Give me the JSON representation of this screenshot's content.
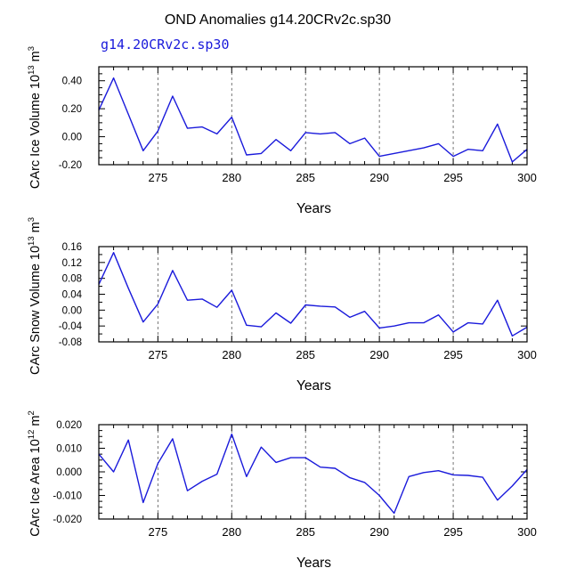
{
  "figure": {
    "title": "OND Anomalies g14.20CRv2c.sp30",
    "run_label": "g14.20CRv2c.sp30",
    "line_color": "#1a1adb",
    "axis_color": "#000000",
    "grid_color": "#555555"
  },
  "chart_data": [
    {
      "type": "line",
      "ylabel_pre": "CArc Ice Volume 10",
      "ylabel_exp": "13",
      "ylabel_mid": " m",
      "ylabel_exp2": "3",
      "xlabel": "Years",
      "xlim": [
        271,
        300
      ],
      "ylim": [
        -0.2,
        0.5
      ],
      "xticks": [
        275,
        280,
        285,
        290,
        295,
        300
      ],
      "xtick_labels": [
        "275",
        "280",
        "285",
        "290",
        "295",
        "300"
      ],
      "yticks": [
        -0.2,
        0.0,
        0.2,
        0.4
      ],
      "ytick_labels": [
        "-0.20",
        "0.00",
        "0.20",
        "0.40"
      ],
      "yminor_step": 0.05,
      "grid": "vertical dashed at major x ticks",
      "series": [
        {
          "x": [
            271,
            272,
            273,
            274,
            275,
            276,
            277,
            278,
            279,
            280,
            281,
            282,
            283,
            284,
            285,
            286,
            287,
            288,
            289,
            290,
            293,
            294,
            295,
            296,
            297,
            298,
            299,
            300
          ],
          "values": [
            0.19,
            0.42,
            0.16,
            -0.1,
            0.04,
            0.29,
            0.06,
            0.07,
            0.02,
            0.14,
            -0.13,
            -0.12,
            -0.02,
            -0.1,
            0.03,
            0.02,
            0.03,
            -0.05,
            -0.01,
            -0.14,
            -0.08,
            -0.05,
            -0.14,
            -0.09,
            -0.1,
            0.09,
            -0.18,
            -0.09
          ]
        }
      ]
    },
    {
      "type": "line",
      "ylabel_pre": "CArc Snow Volume 10",
      "ylabel_exp": "13",
      "ylabel_mid": " m",
      "ylabel_exp2": "3",
      "xlabel": "Years",
      "xlim": [
        271,
        300
      ],
      "ylim": [
        -0.08,
        0.16
      ],
      "xticks": [
        275,
        280,
        285,
        290,
        295,
        300
      ],
      "xtick_labels": [
        "275",
        "280",
        "285",
        "290",
        "295",
        "300"
      ],
      "yticks": [
        -0.08,
        -0.04,
        0.0,
        0.04,
        0.08,
        0.12,
        0.16
      ],
      "ytick_labels": [
        "-0.08",
        "-0.04",
        "0.00",
        "0.04",
        "0.08",
        "0.12",
        "0.16"
      ],
      "yminor_step": 0.02,
      "grid": "vertical dashed at major x ticks",
      "series": [
        {
          "x": [
            271,
            272,
            273,
            274,
            275,
            276,
            277,
            278,
            279,
            280,
            281,
            282,
            283,
            284,
            285,
            286,
            287,
            288,
            289,
            290,
            291,
            292,
            293,
            294,
            295,
            296,
            297,
            298,
            299,
            300
          ],
          "values": [
            0.065,
            0.145,
            0.055,
            -0.03,
            0.015,
            0.1,
            0.025,
            0.028,
            0.007,
            0.05,
            -0.038,
            -0.042,
            -0.007,
            -0.033,
            0.013,
            0.01,
            0.008,
            -0.018,
            -0.003,
            -0.045,
            -0.04,
            -0.032,
            -0.032,
            -0.012,
            -0.055,
            -0.032,
            -0.035,
            0.025,
            -0.065,
            -0.043
          ]
        }
      ]
    },
    {
      "type": "line",
      "ylabel_pre": "CArc Ice Area 10",
      "ylabel_exp": "12",
      "ylabel_mid": " m",
      "ylabel_exp2": "2",
      "xlabel": "Years",
      "xlim": [
        271,
        300
      ],
      "ylim": [
        -0.02,
        0.02
      ],
      "xticks": [
        275,
        280,
        285,
        290,
        295,
        300
      ],
      "xtick_labels": [
        "275",
        "280",
        "285",
        "290",
        "295",
        "300"
      ],
      "yticks": [
        -0.02,
        -0.01,
        0.0,
        0.01,
        0.02
      ],
      "ytick_labels": [
        "-0.020",
        "-0.010",
        "0.000",
        "0.010",
        "0.020"
      ],
      "yminor_step": 0.0025,
      "grid": "vertical dashed at major x ticks",
      "series": [
        {
          "x": [
            271,
            272,
            273,
            274,
            275,
            276,
            277,
            278,
            279,
            280,
            281,
            282,
            283,
            284,
            285,
            286,
            287,
            288,
            289,
            290,
            291,
            292,
            293,
            294,
            295,
            296,
            297,
            298,
            299,
            300
          ],
          "values": [
            0.0075,
            0.0,
            0.0135,
            -0.013,
            0.0035,
            0.014,
            -0.008,
            -0.004,
            -0.001,
            0.016,
            -0.002,
            0.0105,
            0.004,
            0.006,
            0.006,
            0.002,
            0.0015,
            -0.0025,
            -0.0045,
            -0.01,
            -0.0175,
            -0.002,
            -0.0003,
            0.0005,
            -0.0013,
            -0.0015,
            -0.0023,
            -0.012,
            -0.006,
            0.001
          ]
        }
      ]
    }
  ]
}
